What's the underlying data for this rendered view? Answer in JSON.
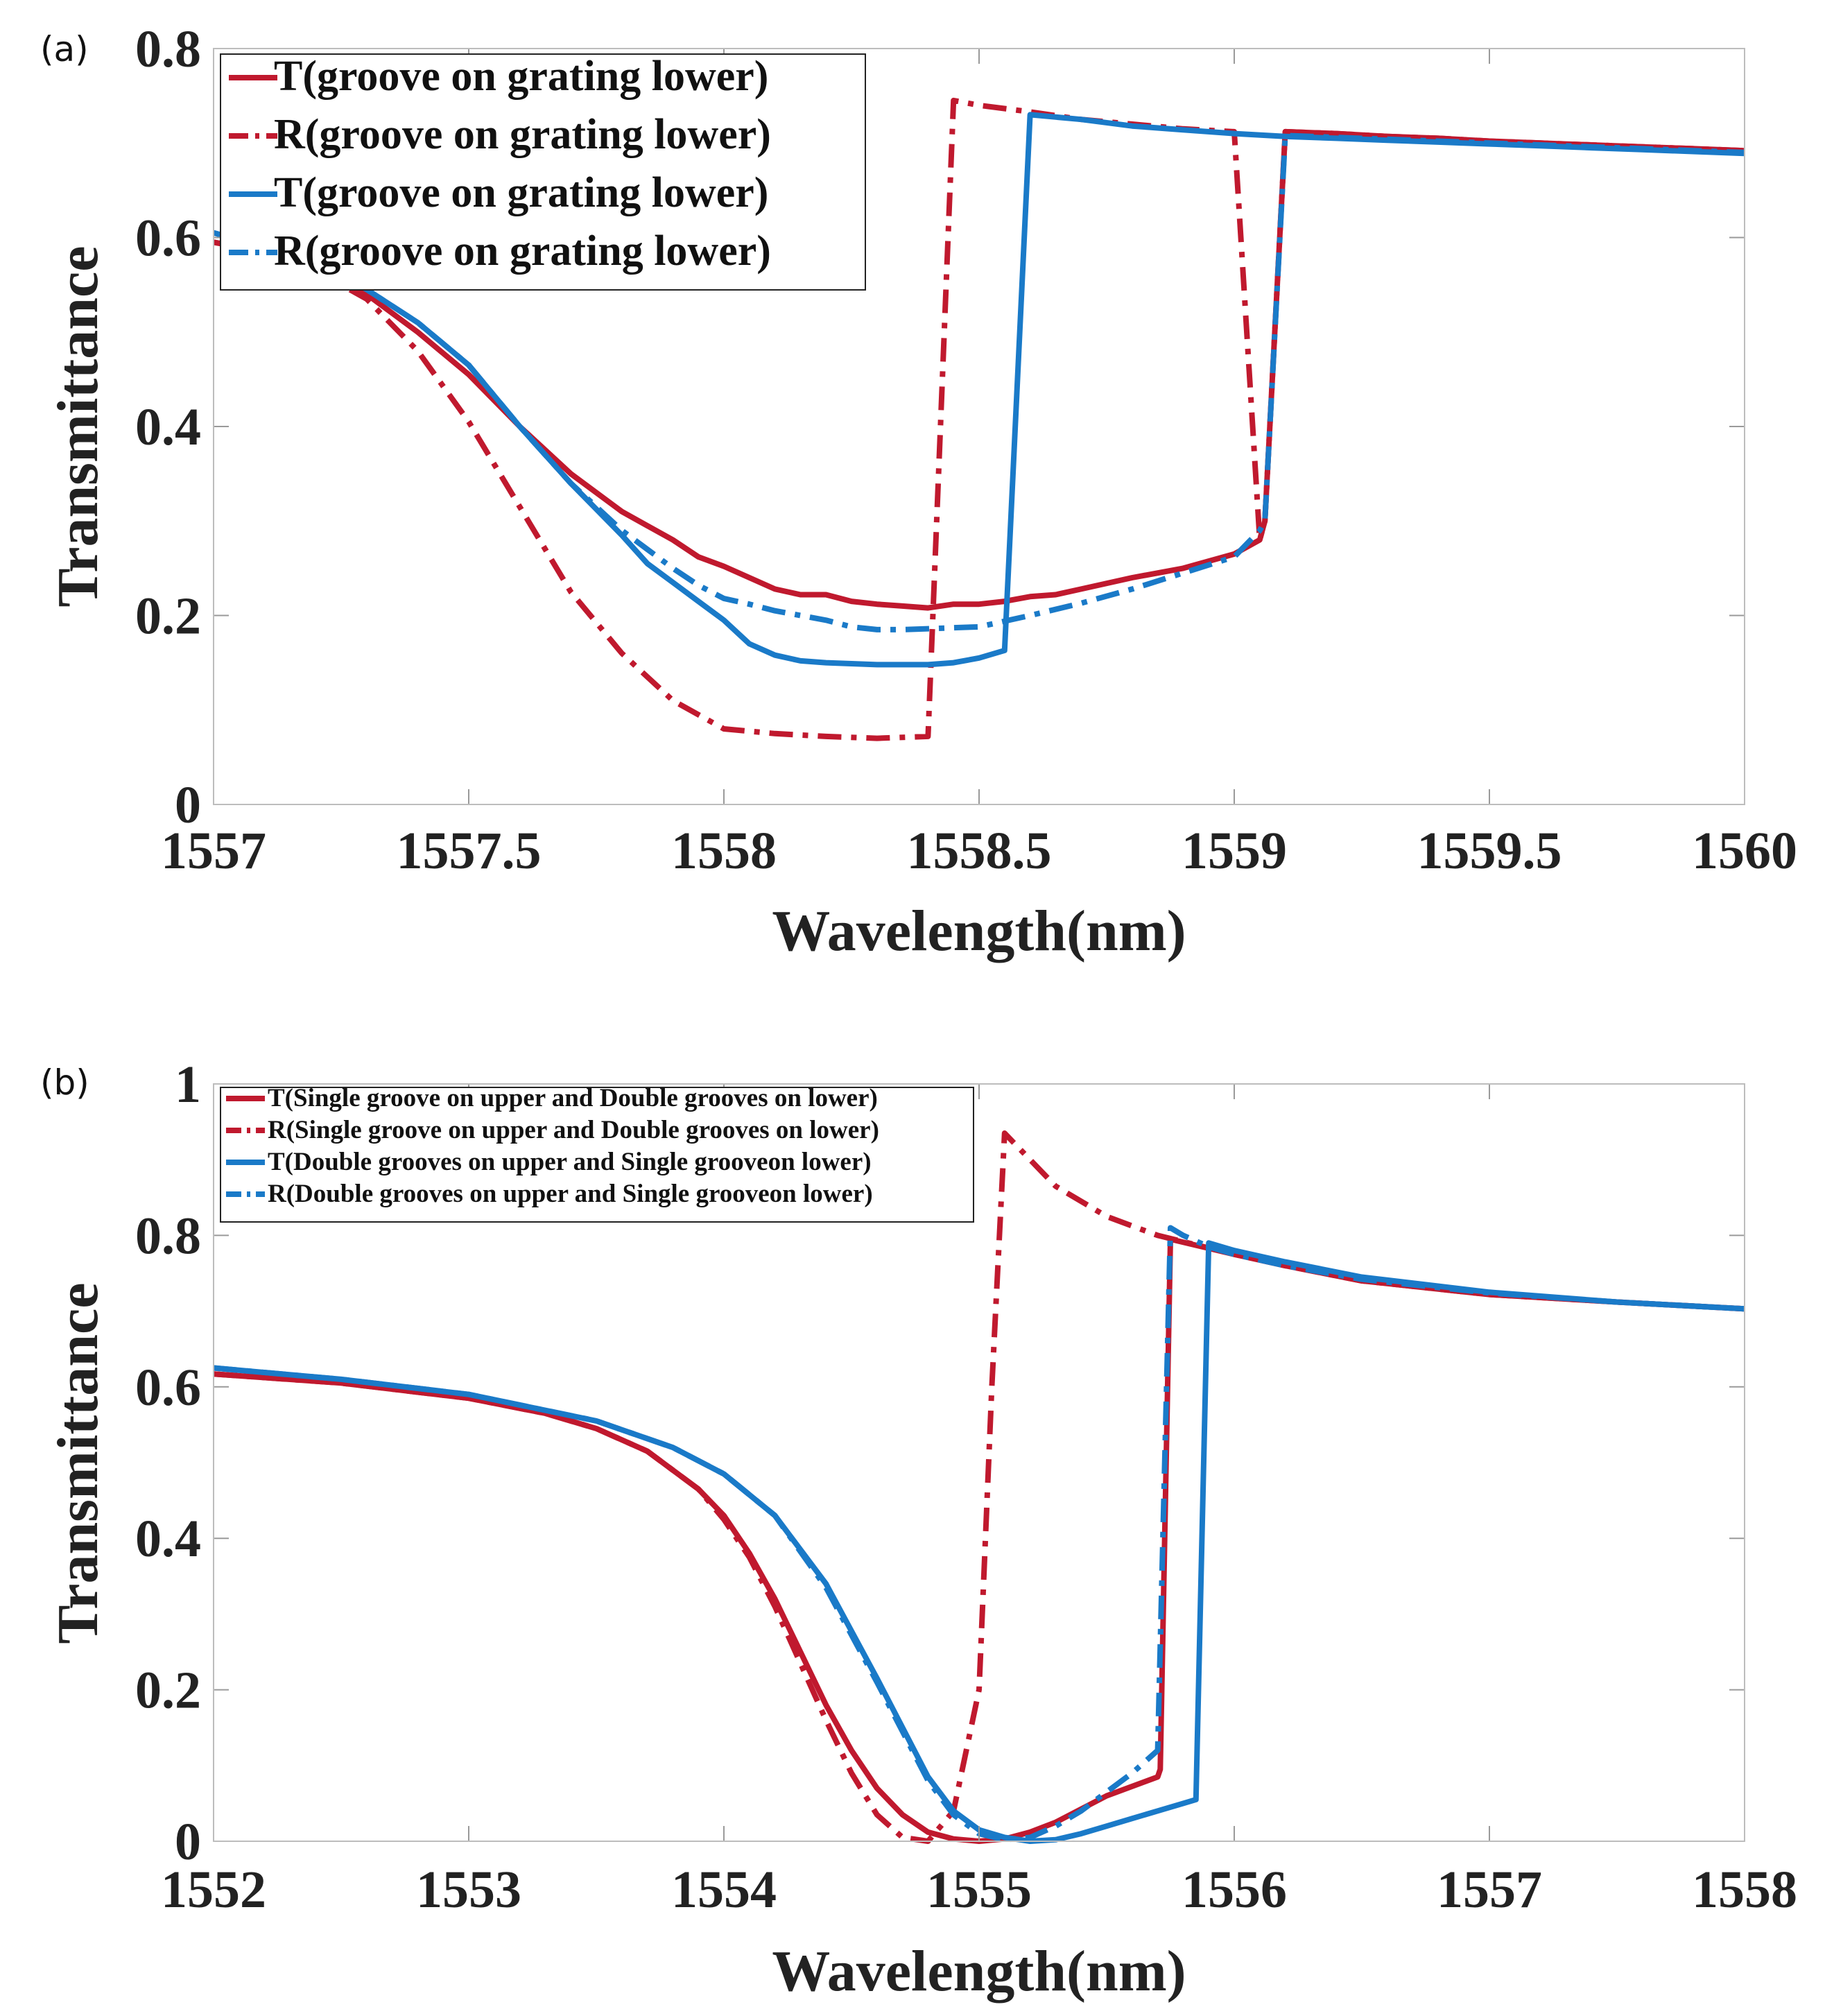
{
  "chart_data": [
    {
      "panel_label": "(a)",
      "type": "line",
      "xlabel": "Wavelength(nm)",
      "ylabel": "Transmittance",
      "xlim": [
        1557,
        1560
      ],
      "ylim": [
        0,
        0.8
      ],
      "xticks": [
        "1557",
        "1557.5",
        "1558",
        "1558.5",
        "1559",
        "1559.5",
        "1560"
      ],
      "yticks": [
        "0",
        "0.2",
        "0.4",
        "0.6",
        "0.8"
      ],
      "legend": "top-left",
      "series": [
        {
          "name": "T(groove on grating lower)",
          "color": "#c0192e",
          "style": "solid",
          "x": [
            1557.0,
            1557.1,
            1557.2,
            1557.3,
            1557.4,
            1557.5,
            1557.6,
            1557.7,
            1557.8,
            1557.85,
            1557.9,
            1557.95,
            1558.0,
            1558.05,
            1558.1,
            1558.15,
            1558.2,
            1558.25,
            1558.3,
            1558.35,
            1558.4,
            1558.45,
            1558.5,
            1558.55,
            1558.6,
            1558.65,
            1558.7,
            1558.8,
            1558.9,
            1559.0,
            1559.05,
            1559.06,
            1559.1,
            1559.2,
            1559.3,
            1559.4,
            1559.5,
            1559.6,
            1559.7,
            1559.8,
            1559.9,
            1560.0
          ],
          "y": [
            0.595,
            0.585,
            0.57,
            0.54,
            0.5,
            0.455,
            0.4,
            0.35,
            0.31,
            0.295,
            0.28,
            0.262,
            0.252,
            0.24,
            0.228,
            0.222,
            0.222,
            0.215,
            0.212,
            0.21,
            0.208,
            0.212,
            0.212,
            0.215,
            0.22,
            0.222,
            0.228,
            0.24,
            0.25,
            0.265,
            0.28,
            0.3,
            0.712,
            0.71,
            0.707,
            0.705,
            0.702,
            0.7,
            0.698,
            0.696,
            0.694,
            0.692
          ]
        },
        {
          "name": "R(groove on grating lower)",
          "color": "#c0192e",
          "style": "dashdot",
          "x": [
            1557.0,
            1557.1,
            1557.2,
            1557.3,
            1557.4,
            1557.5,
            1557.6,
            1557.7,
            1557.8,
            1557.9,
            1558.0,
            1558.1,
            1558.2,
            1558.3,
            1558.4,
            1558.45,
            1558.5,
            1558.6,
            1558.7,
            1558.8,
            1558.9,
            1559.0,
            1559.05,
            1559.06,
            1559.1,
            1559.2,
            1559.3,
            1559.4,
            1559.5,
            1559.6,
            1559.7,
            1559.8,
            1559.9,
            1560.0
          ],
          "y": [
            0.595,
            0.585,
            0.565,
            0.535,
            0.48,
            0.405,
            0.315,
            0.225,
            0.16,
            0.11,
            0.08,
            0.075,
            0.072,
            0.07,
            0.072,
            0.745,
            0.74,
            0.733,
            0.725,
            0.72,
            0.715,
            0.712,
            0.28,
            0.3,
            0.712,
            0.71,
            0.707,
            0.705,
            0.702,
            0.7,
            0.698,
            0.696,
            0.694,
            0.692
          ]
        },
        {
          "name": "T(groove on grating lower)",
          "color": "#1a7ac8",
          "style": "solid",
          "x": [
            1557.0,
            1557.1,
            1557.2,
            1557.3,
            1557.4,
            1557.5,
            1557.6,
            1557.7,
            1557.8,
            1557.85,
            1557.9,
            1557.95,
            1558.0,
            1558.05,
            1558.1,
            1558.15,
            1558.2,
            1558.3,
            1558.4,
            1558.45,
            1558.5,
            1558.55,
            1558.6,
            1558.7,
            1558.8,
            1558.9,
            1559.0,
            1559.1,
            1559.2,
            1559.3,
            1559.4,
            1559.5,
            1559.6,
            1559.7,
            1559.8,
            1559.9,
            1560.0
          ],
          "y": [
            0.605,
            0.59,
            0.575,
            0.545,
            0.51,
            0.465,
            0.4,
            0.34,
            0.285,
            0.255,
            0.235,
            0.215,
            0.195,
            0.17,
            0.158,
            0.152,
            0.15,
            0.148,
            0.148,
            0.15,
            0.155,
            0.163,
            0.73,
            0.725,
            0.718,
            0.714,
            0.71,
            0.707,
            0.705,
            0.703,
            0.701,
            0.699,
            0.697,
            0.695,
            0.693,
            0.691,
            0.689
          ]
        },
        {
          "name": "R(groove on grating lower)",
          "color": "#1a7ac8",
          "style": "dashdot",
          "x": [
            1557.0,
            1557.1,
            1557.2,
            1557.3,
            1557.4,
            1557.5,
            1557.6,
            1557.7,
            1557.8,
            1557.85,
            1557.9,
            1557.95,
            1558.0,
            1558.05,
            1558.1,
            1558.15,
            1558.2,
            1558.25,
            1558.3,
            1558.35,
            1558.4,
            1558.45,
            1558.5,
            1558.6,
            1558.7,
            1558.8,
            1558.9,
            1559.0,
            1559.05,
            1559.06,
            1559.1,
            1559.2,
            1559.3,
            1559.4,
            1559.5,
            1559.6,
            1559.7,
            1559.8,
            1559.9,
            1560.0
          ],
          "y": [
            0.605,
            0.59,
            0.575,
            0.545,
            0.51,
            0.465,
            0.4,
            0.34,
            0.29,
            0.27,
            0.25,
            0.232,
            0.218,
            0.212,
            0.205,
            0.2,
            0.195,
            0.188,
            0.185,
            0.185,
            0.186,
            0.187,
            0.188,
            0.2,
            0.213,
            0.228,
            0.245,
            0.262,
            0.29,
            0.3,
            0.708,
            0.706,
            0.704,
            0.702,
            0.7,
            0.698,
            0.696,
            0.694,
            0.692,
            0.69
          ]
        }
      ]
    },
    {
      "panel_label": "(b)",
      "type": "line",
      "xlabel": "Wavelength(nm)",
      "ylabel": "Transmittance",
      "xlim": [
        1552,
        1558
      ],
      "ylim": [
        0,
        1
      ],
      "xticks": [
        "1552",
        "1553",
        "1554",
        "1555",
        "1556",
        "1557",
        "1558"
      ],
      "yticks": [
        "0",
        "0.2",
        "0.4",
        "0.6",
        "0.8",
        "1"
      ],
      "legend": "top-left",
      "series": [
        {
          "name": "T(Single groove on upper and Double grooves on lower)",
          "color": "#c0192e",
          "style": "solid",
          "x": [
            1552.0,
            1552.5,
            1553.0,
            1553.3,
            1553.5,
            1553.7,
            1553.9,
            1554.0,
            1554.1,
            1554.2,
            1554.3,
            1554.4,
            1554.5,
            1554.6,
            1554.7,
            1554.8,
            1554.9,
            1555.0,
            1555.1,
            1555.2,
            1555.3,
            1555.5,
            1555.7,
            1555.71,
            1555.75,
            1556.0,
            1556.2,
            1556.5,
            1557.0,
            1557.5,
            1558.0
          ],
          "y": [
            0.617,
            0.605,
            0.585,
            0.565,
            0.545,
            0.515,
            0.465,
            0.43,
            0.38,
            0.32,
            0.25,
            0.18,
            0.12,
            0.07,
            0.035,
            0.012,
            0.003,
            0.0,
            0.003,
            0.012,
            0.025,
            0.06,
            0.085,
            0.095,
            0.795,
            0.775,
            0.76,
            0.74,
            0.722,
            0.712,
            0.703
          ]
        },
        {
          "name": "R(Single groove on upper and Double grooves on lower)",
          "color": "#c0192e",
          "style": "dashdot",
          "x": [
            1552.0,
            1552.5,
            1553.0,
            1553.3,
            1553.5,
            1553.7,
            1553.9,
            1554.0,
            1554.1,
            1554.2,
            1554.3,
            1554.4,
            1554.5,
            1554.6,
            1554.7,
            1554.8,
            1554.9,
            1555.0,
            1555.05,
            1555.1,
            1555.2,
            1555.3,
            1555.5,
            1555.7,
            1556.0,
            1556.2,
            1556.5,
            1557.0,
            1557.5,
            1558.0
          ],
          "y": [
            0.617,
            0.605,
            0.585,
            0.565,
            0.545,
            0.515,
            0.465,
            0.425,
            0.375,
            0.31,
            0.235,
            0.16,
            0.09,
            0.035,
            0.005,
            0.0,
            0.04,
            0.2,
            0.6,
            0.935,
            0.9,
            0.865,
            0.825,
            0.8,
            0.775,
            0.76,
            0.74,
            0.722,
            0.712,
            0.703
          ]
        },
        {
          "name": "T(Double grooves on upper and  Single grooveon lower)",
          "color": "#1a7ac8",
          "style": "solid",
          "x": [
            1552.0,
            1552.5,
            1553.0,
            1553.5,
            1553.8,
            1554.0,
            1554.2,
            1554.4,
            1554.6,
            1554.8,
            1554.9,
            1555.0,
            1555.1,
            1555.2,
            1555.3,
            1555.4,
            1555.5,
            1555.6,
            1555.7,
            1555.8,
            1555.85,
            1555.9,
            1556.0,
            1556.2,
            1556.5,
            1557.0,
            1557.5,
            1558.0
          ],
          "y": [
            0.625,
            0.61,
            0.59,
            0.555,
            0.52,
            0.485,
            0.43,
            0.34,
            0.215,
            0.085,
            0.04,
            0.015,
            0.005,
            0.0,
            0.002,
            0.01,
            0.02,
            0.03,
            0.04,
            0.05,
            0.055,
            0.79,
            0.78,
            0.765,
            0.745,
            0.725,
            0.712,
            0.703
          ]
        },
        {
          "name": "R(Double grooves on upper and  Single grooveon lower)",
          "color": "#1a7ac8",
          "style": "dashdot",
          "x": [
            1552.0,
            1552.5,
            1553.0,
            1553.5,
            1553.8,
            1554.0,
            1554.2,
            1554.4,
            1554.6,
            1554.8,
            1554.9,
            1555.0,
            1555.1,
            1555.2,
            1555.3,
            1555.4,
            1555.5,
            1555.6,
            1555.7,
            1555.75,
            1555.8,
            1555.9,
            1556.0,
            1556.2,
            1556.5,
            1557.0,
            1557.5,
            1558.0
          ],
          "y": [
            0.625,
            0.61,
            0.59,
            0.555,
            0.52,
            0.485,
            0.43,
            0.335,
            0.21,
            0.08,
            0.035,
            0.01,
            0.002,
            0.005,
            0.02,
            0.04,
            0.065,
            0.09,
            0.12,
            0.81,
            0.8,
            0.785,
            0.775,
            0.76,
            0.742,
            0.724,
            0.712,
            0.703
          ]
        }
      ]
    }
  ]
}
